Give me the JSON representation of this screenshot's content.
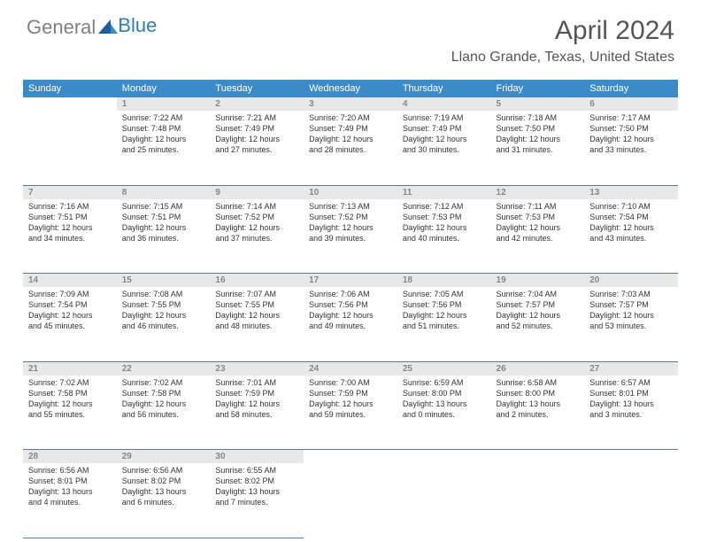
{
  "logo": {
    "part1": "General",
    "part2": "Blue"
  },
  "title": "April 2024",
  "location": "Llano Grande, Texas, United States",
  "headerColor": "#3b8bc9",
  "dayHeaderBg": "#e8e8e8",
  "weekdays": [
    "Sunday",
    "Monday",
    "Tuesday",
    "Wednesday",
    "Thursday",
    "Friday",
    "Saturday"
  ],
  "weeks": [
    {
      "nums": [
        "",
        "1",
        "2",
        "3",
        "4",
        "5",
        "6"
      ],
      "cells": [
        null,
        {
          "sunrise": "Sunrise: 7:22 AM",
          "sunset": "Sunset: 7:48 PM",
          "day1": "Daylight: 12 hours",
          "day2": "and 25 minutes."
        },
        {
          "sunrise": "Sunrise: 7:21 AM",
          "sunset": "Sunset: 7:49 PM",
          "day1": "Daylight: 12 hours",
          "day2": "and 27 minutes."
        },
        {
          "sunrise": "Sunrise: 7:20 AM",
          "sunset": "Sunset: 7:49 PM",
          "day1": "Daylight: 12 hours",
          "day2": "and 28 minutes."
        },
        {
          "sunrise": "Sunrise: 7:19 AM",
          "sunset": "Sunset: 7:49 PM",
          "day1": "Daylight: 12 hours",
          "day2": "and 30 minutes."
        },
        {
          "sunrise": "Sunrise: 7:18 AM",
          "sunset": "Sunset: 7:50 PM",
          "day1": "Daylight: 12 hours",
          "day2": "and 31 minutes."
        },
        {
          "sunrise": "Sunrise: 7:17 AM",
          "sunset": "Sunset: 7:50 PM",
          "day1": "Daylight: 12 hours",
          "day2": "and 33 minutes."
        }
      ]
    },
    {
      "nums": [
        "7",
        "8",
        "9",
        "10",
        "11",
        "12",
        "13"
      ],
      "cells": [
        {
          "sunrise": "Sunrise: 7:16 AM",
          "sunset": "Sunset: 7:51 PM",
          "day1": "Daylight: 12 hours",
          "day2": "and 34 minutes."
        },
        {
          "sunrise": "Sunrise: 7:15 AM",
          "sunset": "Sunset: 7:51 PM",
          "day1": "Daylight: 12 hours",
          "day2": "and 36 minutes."
        },
        {
          "sunrise": "Sunrise: 7:14 AM",
          "sunset": "Sunset: 7:52 PM",
          "day1": "Daylight: 12 hours",
          "day2": "and 37 minutes."
        },
        {
          "sunrise": "Sunrise: 7:13 AM",
          "sunset": "Sunset: 7:52 PM",
          "day1": "Daylight: 12 hours",
          "day2": "and 39 minutes."
        },
        {
          "sunrise": "Sunrise: 7:12 AM",
          "sunset": "Sunset: 7:53 PM",
          "day1": "Daylight: 12 hours",
          "day2": "and 40 minutes."
        },
        {
          "sunrise": "Sunrise: 7:11 AM",
          "sunset": "Sunset: 7:53 PM",
          "day1": "Daylight: 12 hours",
          "day2": "and 42 minutes."
        },
        {
          "sunrise": "Sunrise: 7:10 AM",
          "sunset": "Sunset: 7:54 PM",
          "day1": "Daylight: 12 hours",
          "day2": "and 43 minutes."
        }
      ]
    },
    {
      "nums": [
        "14",
        "15",
        "16",
        "17",
        "18",
        "19",
        "20"
      ],
      "cells": [
        {
          "sunrise": "Sunrise: 7:09 AM",
          "sunset": "Sunset: 7:54 PM",
          "day1": "Daylight: 12 hours",
          "day2": "and 45 minutes."
        },
        {
          "sunrise": "Sunrise: 7:08 AM",
          "sunset": "Sunset: 7:55 PM",
          "day1": "Daylight: 12 hours",
          "day2": "and 46 minutes."
        },
        {
          "sunrise": "Sunrise: 7:07 AM",
          "sunset": "Sunset: 7:55 PM",
          "day1": "Daylight: 12 hours",
          "day2": "and 48 minutes."
        },
        {
          "sunrise": "Sunrise: 7:06 AM",
          "sunset": "Sunset: 7:56 PM",
          "day1": "Daylight: 12 hours",
          "day2": "and 49 minutes."
        },
        {
          "sunrise": "Sunrise: 7:05 AM",
          "sunset": "Sunset: 7:56 PM",
          "day1": "Daylight: 12 hours",
          "day2": "and 51 minutes."
        },
        {
          "sunrise": "Sunrise: 7:04 AM",
          "sunset": "Sunset: 7:57 PM",
          "day1": "Daylight: 12 hours",
          "day2": "and 52 minutes."
        },
        {
          "sunrise": "Sunrise: 7:03 AM",
          "sunset": "Sunset: 7:57 PM",
          "day1": "Daylight: 12 hours",
          "day2": "and 53 minutes."
        }
      ]
    },
    {
      "nums": [
        "21",
        "22",
        "23",
        "24",
        "25",
        "26",
        "27"
      ],
      "cells": [
        {
          "sunrise": "Sunrise: 7:02 AM",
          "sunset": "Sunset: 7:58 PM",
          "day1": "Daylight: 12 hours",
          "day2": "and 55 minutes."
        },
        {
          "sunrise": "Sunrise: 7:02 AM",
          "sunset": "Sunset: 7:58 PM",
          "day1": "Daylight: 12 hours",
          "day2": "and 56 minutes."
        },
        {
          "sunrise": "Sunrise: 7:01 AM",
          "sunset": "Sunset: 7:59 PM",
          "day1": "Daylight: 12 hours",
          "day2": "and 58 minutes."
        },
        {
          "sunrise": "Sunrise: 7:00 AM",
          "sunset": "Sunset: 7:59 PM",
          "day1": "Daylight: 12 hours",
          "day2": "and 59 minutes."
        },
        {
          "sunrise": "Sunrise: 6:59 AM",
          "sunset": "Sunset: 8:00 PM",
          "day1": "Daylight: 13 hours",
          "day2": "and 0 minutes."
        },
        {
          "sunrise": "Sunrise: 6:58 AM",
          "sunset": "Sunset: 8:00 PM",
          "day1": "Daylight: 13 hours",
          "day2": "and 2 minutes."
        },
        {
          "sunrise": "Sunrise: 6:57 AM",
          "sunset": "Sunset: 8:01 PM",
          "day1": "Daylight: 13 hours",
          "day2": "and 3 minutes."
        }
      ]
    },
    {
      "nums": [
        "28",
        "29",
        "30",
        "",
        "",
        "",
        ""
      ],
      "cells": [
        {
          "sunrise": "Sunrise: 6:56 AM",
          "sunset": "Sunset: 8:01 PM",
          "day1": "Daylight: 13 hours",
          "day2": "and 4 minutes."
        },
        {
          "sunrise": "Sunrise: 6:56 AM",
          "sunset": "Sunset: 8:02 PM",
          "day1": "Daylight: 13 hours",
          "day2": "and 6 minutes."
        },
        {
          "sunrise": "Sunrise: 6:55 AM",
          "sunset": "Sunset: 8:02 PM",
          "day1": "Daylight: 13 hours",
          "day2": "and 7 minutes."
        },
        null,
        null,
        null,
        null
      ]
    }
  ]
}
